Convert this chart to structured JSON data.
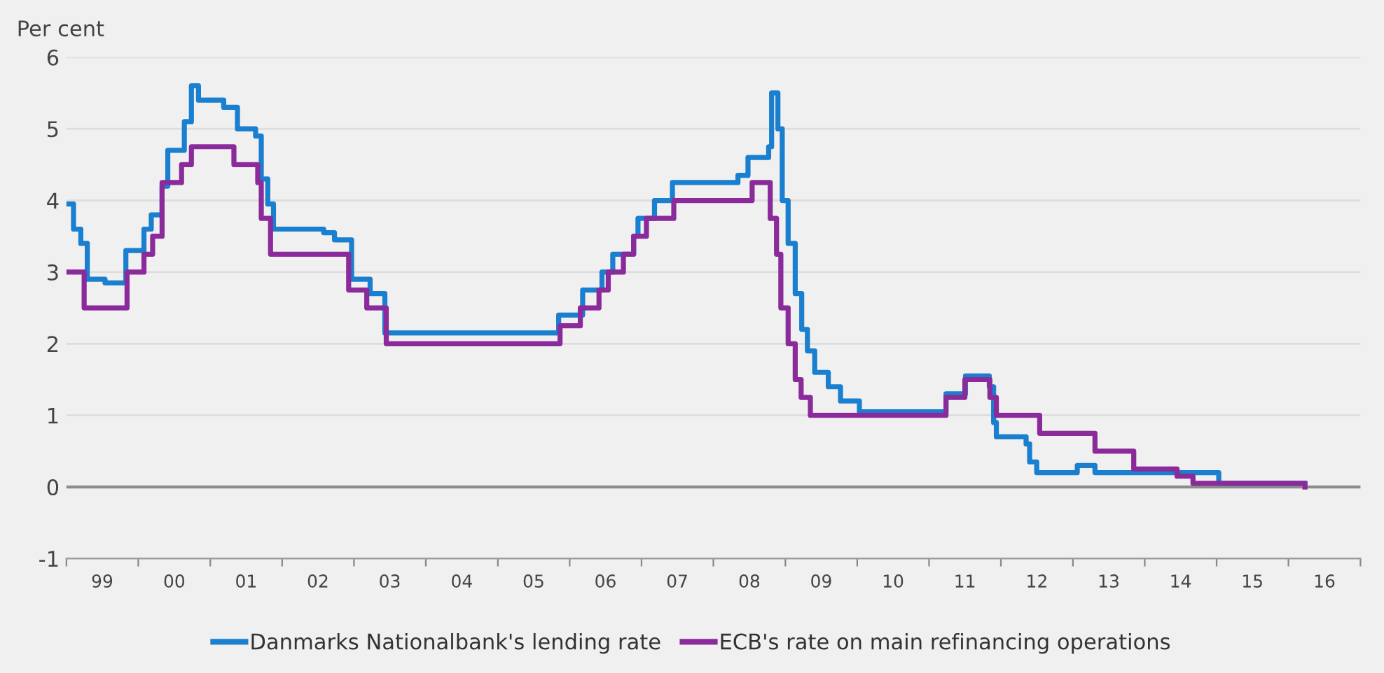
{
  "chart_data": {
    "type": "step",
    "ylabel": "Per cent",
    "xlim": [
      "1999-01-01",
      "2017-01-01"
    ],
    "ylim": [
      -1,
      6
    ],
    "yticks": [
      -1,
      0,
      1,
      2,
      3,
      4,
      5,
      6
    ],
    "xticks": [
      {
        "value": "1999-01-01",
        "label": null
      },
      {
        "value": "1999-07-02",
        "label": "99"
      },
      {
        "value": "2000-01-01",
        "label": null
      },
      {
        "value": "2000-07-02",
        "label": "00"
      },
      {
        "value": "2001-01-01",
        "label": null
      },
      {
        "value": "2001-07-02",
        "label": "01"
      },
      {
        "value": "2002-01-01",
        "label": null
      },
      {
        "value": "2002-07-02",
        "label": "02"
      },
      {
        "value": "2003-01-01",
        "label": null
      },
      {
        "value": "2003-07-02",
        "label": "03"
      },
      {
        "value": "2004-01-01",
        "label": null
      },
      {
        "value": "2004-07-02",
        "label": "04"
      },
      {
        "value": "2005-01-01",
        "label": null
      },
      {
        "value": "2005-07-02",
        "label": "05"
      },
      {
        "value": "2006-01-01",
        "label": null
      },
      {
        "value": "2006-07-02",
        "label": "06"
      },
      {
        "value": "2007-01-01",
        "label": null
      },
      {
        "value": "2007-07-02",
        "label": "07"
      },
      {
        "value": "2008-01-01",
        "label": null
      },
      {
        "value": "2008-07-02",
        "label": "08"
      },
      {
        "value": "2009-01-01",
        "label": null
      },
      {
        "value": "2009-07-02",
        "label": "09"
      },
      {
        "value": "2010-01-01",
        "label": null
      },
      {
        "value": "2010-07-02",
        "label": "10"
      },
      {
        "value": "2011-01-01",
        "label": null
      },
      {
        "value": "2011-07-02",
        "label": "11"
      },
      {
        "value": "2012-01-01",
        "label": null
      },
      {
        "value": "2012-07-02",
        "label": "12"
      },
      {
        "value": "2013-01-01",
        "label": null
      },
      {
        "value": "2013-07-02",
        "label": "13"
      },
      {
        "value": "2014-01-01",
        "label": null
      },
      {
        "value": "2014-07-02",
        "label": "14"
      },
      {
        "value": "2015-01-01",
        "label": null
      },
      {
        "value": "2015-07-02",
        "label": "15"
      },
      {
        "value": "2016-01-01",
        "label": null
      },
      {
        "value": "2016-07-02",
        "label": "16"
      },
      {
        "value": "2017-01-01",
        "label": null
      }
    ],
    "grid": "y",
    "legend": "bottom",
    "ref_lines": [
      {
        "axis": "y",
        "value": 0,
        "color": "#8c8c8c"
      }
    ],
    "series": [
      {
        "name": "Danmarks Nationalbank's lending rate",
        "color": "#1a7fcf",
        "x": [
          "1999-01-01",
          "1999-02-06",
          "1999-03-15",
          "1999-04-17",
          "1999-07-16",
          "1999-10-30",
          "2000-01-30",
          "2000-03-07",
          "2000-05-01",
          "2000-05-30",
          "2000-08-22",
          "2000-09-27",
          "2000-11-02",
          "2001-03-10",
          "2001-05-19",
          "2001-08-19",
          "2001-09-17",
          "2001-10-20",
          "2001-11-18",
          "2002-07-31",
          "2002-09-24",
          "2002-12-20",
          "2003-03-24",
          "2003-06-07",
          "2005-11-06",
          "2006-03-08",
          "2006-06-14",
          "2006-08-08",
          "2006-11-22",
          "2006-12-14",
          "2007-03-08",
          "2007-06-07",
          "2008-05-05",
          "2008-06-25",
          "2008-10-08",
          "2008-10-23",
          "2008-11-24",
          "2008-12-16",
          "2009-01-15",
          "2009-02-20",
          "2009-03-25",
          "2009-04-23",
          "2009-05-30",
          "2009-08-07",
          "2009-10-08",
          "2010-01-12",
          "2011-03-28",
          "2011-07-05",
          "2011-11-03",
          "2011-11-25",
          "2011-12-09",
          "2012-05-08",
          "2012-05-26",
          "2012-07-01",
          "2013-01-23",
          "2013-04-23",
          "2015-01-12",
          "2016-03-25"
        ],
        "values": [
          3.95,
          3.6,
          3.4,
          2.9,
          2.85,
          3.3,
          3.6,
          3.8,
          4.2,
          4.7,
          5.1,
          5.6,
          5.4,
          5.3,
          5.0,
          4.9,
          4.3,
          3.95,
          3.6,
          3.55,
          3.45,
          2.9,
          2.7,
          2.15,
          2.4,
          2.75,
          3.0,
          3.25,
          3.5,
          3.75,
          4.0,
          4.25,
          4.35,
          4.6,
          4.75,
          5.5,
          5.0,
          4.0,
          3.4,
          2.7,
          2.2,
          1.9,
          1.6,
          1.4,
          1.2,
          1.05,
          1.3,
          1.55,
          1.4,
          0.9,
          0.7,
          0.6,
          0.35,
          0.2,
          0.3,
          0.2,
          0.05,
          0.05
        ]
      },
      {
        "name": "ECB's rate on main refinancing operations",
        "color": "#8b2b9b",
        "x": [
          "1999-01-01",
          "1999-04-01",
          "1999-11-05",
          "2000-01-30",
          "2000-03-14",
          "2000-05-01",
          "2000-08-08",
          "2000-09-27",
          "2001-05-01",
          "2001-08-30",
          "2001-09-17",
          "2001-11-03",
          "2002-12-05",
          "2003-03-07",
          "2003-06-14",
          "2005-11-13",
          "2006-02-24",
          "2006-05-30",
          "2006-07-16",
          "2006-10-01",
          "2006-11-22",
          "2007-01-26",
          "2007-06-14",
          "2008-07-16",
          "2008-10-16",
          "2008-11-17",
          "2008-12-09",
          "2009-01-15",
          "2009-02-20",
          "2009-03-22",
          "2009-05-08",
          "2011-03-28",
          "2011-07-02",
          "2011-11-06",
          "2011-12-09",
          "2012-07-16",
          "2013-04-23",
          "2013-11-06",
          "2014-06-14",
          "2014-09-03",
          "2016-03-25"
        ],
        "values": [
          3.0,
          2.5,
          3.0,
          3.25,
          3.5,
          4.25,
          4.5,
          4.75,
          4.5,
          4.25,
          3.75,
          3.25,
          2.75,
          2.5,
          2.0,
          2.25,
          2.5,
          2.75,
          3.0,
          3.25,
          3.5,
          3.75,
          4.0,
          4.25,
          3.75,
          3.25,
          2.5,
          2.0,
          1.5,
          1.25,
          1.0,
          1.25,
          1.5,
          1.25,
          1.0,
          0.75,
          0.5,
          0.25,
          0.15,
          0.05,
          0.0
        ]
      }
    ]
  }
}
